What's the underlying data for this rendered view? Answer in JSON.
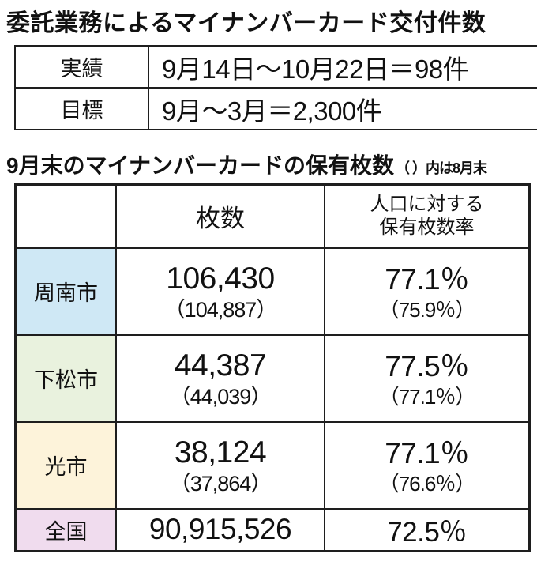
{
  "title1": "委託業務によるマイナンバーカード交付件数",
  "summary_table": {
    "rows": [
      {
        "label": "実績",
        "value": "9月14日～10月22日＝98件"
      },
      {
        "label": "目標",
        "value": "9月～3月＝2,300件"
      }
    ]
  },
  "title2": {
    "main": "9月末のマイナンバーカードの保有枚数",
    "note": "（ ）内は8月末"
  },
  "holdings_table": {
    "headers": {
      "region": "",
      "count": "枚数",
      "rate_line1": "人口に対する",
      "rate_line2": "保有枚数率"
    },
    "rows": [
      {
        "label": "周南市",
        "bg": "#cfe8f5",
        "count": "106,430",
        "count_prev": "（104,887）",
        "rate": "77.1％",
        "rate_prev": "（75.9％）"
      },
      {
        "label": "下松市",
        "bg": "#e9f2de",
        "count": "44,387",
        "count_prev": "（44,039）",
        "rate": "77.5％",
        "rate_prev": "（77.1％）"
      },
      {
        "label": "光市",
        "bg": "#fdf3da",
        "count": "38,124",
        "count_prev": "（37,864）",
        "rate": "77.1％",
        "rate_prev": "（76.6％）"
      }
    ],
    "total_row": {
      "label": "全国",
      "bg": "#f0dcee",
      "count": "90,915,526",
      "rate": "72.5％"
    }
  },
  "colors": {
    "border": "#1e1e1e",
    "shunan_bg": "#cfe8f5",
    "kudamatsu_bg": "#e9f2de",
    "hikari_bg": "#fdf3da",
    "zenkoku_bg": "#f0dcee"
  }
}
